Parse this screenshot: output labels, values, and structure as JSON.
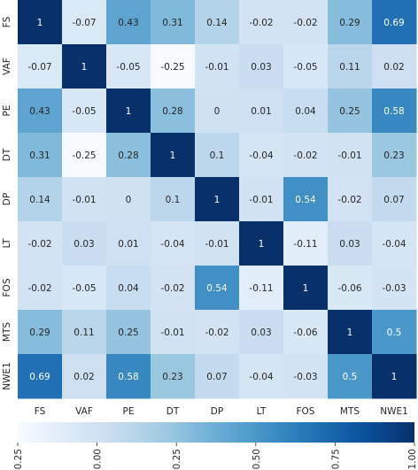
{
  "chart_data": {
    "type": "heatmap",
    "row_labels": [
      "FS",
      "VAF",
      "PE",
      "DT",
      "DP",
      "LT",
      "FOS",
      "MTS",
      "NWE1"
    ],
    "col_labels": [
      "FS",
      "VAF",
      "PE",
      "DT",
      "DP",
      "LT",
      "FOS",
      "MTS",
      "NWE1"
    ],
    "values": [
      [
        1,
        -0.07,
        0.43,
        0.31,
        0.14,
        -0.02,
        -0.02,
        0.29,
        0.69
      ],
      [
        -0.07,
        1,
        -0.05,
        -0.25,
        -0.01,
        0.03,
        -0.05,
        0.11,
        0.02
      ],
      [
        0.43,
        -0.05,
        1,
        0.28,
        0,
        0.01,
        0.04,
        0.25,
        0.58
      ],
      [
        0.31,
        -0.25,
        0.28,
        1,
        0.1,
        -0.04,
        -0.02,
        -0.01,
        0.23
      ],
      [
        0.14,
        -0.01,
        0,
        0.1,
        1,
        -0.01,
        0.54,
        -0.02,
        0.07
      ],
      [
        -0.02,
        0.03,
        0.01,
        -0.04,
        -0.01,
        1,
        -0.11,
        0.03,
        -0.04
      ],
      [
        -0.02,
        -0.05,
        0.04,
        -0.02,
        0.54,
        -0.11,
        1,
        -0.06,
        -0.03
      ],
      [
        0.29,
        0.11,
        0.25,
        -0.01,
        -0.02,
        0.03,
        -0.06,
        1,
        0.5
      ],
      [
        0.69,
        0.02,
        0.58,
        0.23,
        0.07,
        -0.04,
        -0.03,
        0.5,
        1
      ]
    ],
    "colormap": "Blues",
    "vmin": -0.25,
    "vmax": 1.0,
    "colorbar": {
      "orientation": "horizontal",
      "ticks": [
        -0.25,
        0.0,
        0.25,
        0.5,
        0.75,
        1.0
      ],
      "tick_labels": [
        "-0.25",
        "0.00",
        "0.25",
        "0.50",
        "0.75",
        "1.00"
      ]
    }
  }
}
